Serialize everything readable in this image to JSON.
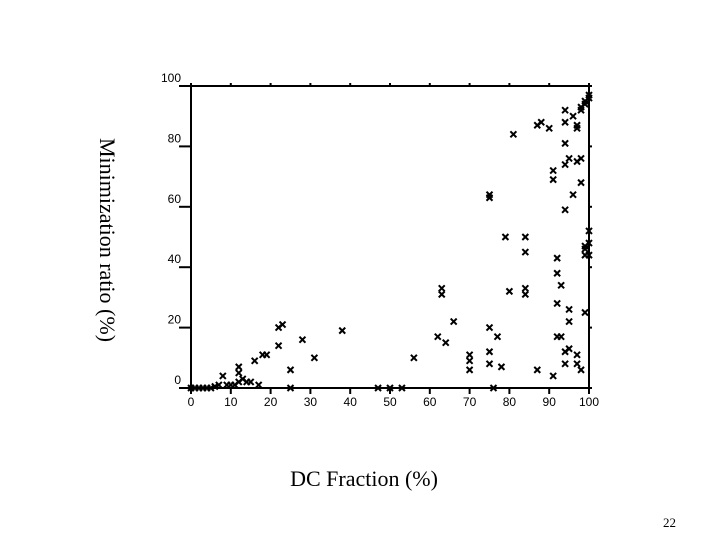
{
  "page": {
    "number": "22"
  },
  "chart_data": {
    "type": "scatter",
    "title": "",
    "xlabel": "DC Fraction (%)",
    "ylabel": "Minimization ratio (%)",
    "xlim": [
      0,
      100
    ],
    "ylim": [
      0,
      100
    ],
    "xticks": [
      0,
      10,
      20,
      30,
      40,
      50,
      60,
      70,
      80,
      90,
      100
    ],
    "yticks": [
      0,
      20,
      40,
      60,
      80,
      100
    ],
    "xtick_labels": [
      "0",
      "10",
      "20",
      "30",
      "40",
      "50",
      "60",
      "70",
      "80",
      "90",
      "100"
    ],
    "ytick_labels": [
      "0",
      "20",
      "40",
      "60",
      "80",
      "100"
    ],
    "grid": false,
    "marker": "x",
    "color": "#000000",
    "series": [
      {
        "points": [
          [
            0,
            0
          ],
          [
            1,
            0
          ],
          [
            2,
            0
          ],
          [
            3,
            0
          ],
          [
            4,
            0
          ],
          [
            5,
            0
          ],
          [
            6,
            0.5
          ],
          [
            7,
            1
          ],
          [
            8,
            4
          ],
          [
            9,
            1
          ],
          [
            10,
            1
          ],
          [
            11,
            1
          ],
          [
            12,
            2
          ],
          [
            12,
            5
          ],
          [
            12,
            7
          ],
          [
            13,
            3
          ],
          [
            14,
            2
          ],
          [
            15,
            2
          ],
          [
            16,
            9
          ],
          [
            17,
            1
          ],
          [
            18,
            11
          ],
          [
            19,
            11
          ],
          [
            22,
            20
          ],
          [
            22,
            14
          ],
          [
            23,
            21
          ],
          [
            25,
            6
          ],
          [
            25,
            0
          ],
          [
            28,
            16
          ],
          [
            31,
            10
          ],
          [
            38,
            19
          ],
          [
            47,
            0
          ],
          [
            50,
            0
          ],
          [
            53,
            0
          ],
          [
            56,
            10
          ],
          [
            62,
            17
          ],
          [
            63,
            31
          ],
          [
            63,
            33
          ],
          [
            64,
            15
          ],
          [
            66,
            22
          ],
          [
            70,
            6
          ],
          [
            70,
            9
          ],
          [
            70,
            11
          ],
          [
            75,
            8
          ],
          [
            75,
            12
          ],
          [
            75,
            20
          ],
          [
            75,
            63
          ],
          [
            75,
            64
          ],
          [
            76,
            0
          ],
          [
            77,
            17
          ],
          [
            78,
            7
          ],
          [
            79,
            50
          ],
          [
            80,
            32
          ],
          [
            81,
            84
          ],
          [
            84,
            45
          ],
          [
            84,
            50
          ],
          [
            84,
            31
          ],
          [
            84,
            33
          ],
          [
            87,
            6
          ],
          [
            87,
            87
          ],
          [
            88,
            88
          ],
          [
            90,
            86
          ],
          [
            91,
            4
          ],
          [
            91,
            69
          ],
          [
            91,
            72
          ],
          [
            92,
            17
          ],
          [
            92,
            28
          ],
          [
            92,
            38
          ],
          [
            92,
            43
          ],
          [
            93,
            34
          ],
          [
            93,
            17
          ],
          [
            94,
            12
          ],
          [
            94,
            8
          ],
          [
            94,
            59
          ],
          [
            94,
            74
          ],
          [
            94,
            81
          ],
          [
            94,
            88
          ],
          [
            94,
            92
          ],
          [
            95,
            13
          ],
          [
            95,
            22
          ],
          [
            95,
            26
          ],
          [
            95,
            76
          ],
          [
            96,
            64
          ],
          [
            96,
            90
          ],
          [
            97,
            8
          ],
          [
            97,
            11
          ],
          [
            97,
            75
          ],
          [
            97,
            86
          ],
          [
            97,
            87
          ],
          [
            98,
            6
          ],
          [
            98,
            68
          ],
          [
            98,
            76
          ],
          [
            98,
            92
          ],
          [
            98,
            93
          ],
          [
            99,
            25
          ],
          [
            99,
            44
          ],
          [
            99,
            46
          ],
          [
            99,
            47
          ],
          [
            99,
            94
          ],
          [
            99,
            95
          ],
          [
            100,
            44
          ],
          [
            100,
            48
          ],
          [
            100,
            52
          ],
          [
            100,
            96
          ],
          [
            100,
            97
          ]
        ]
      }
    ]
  }
}
